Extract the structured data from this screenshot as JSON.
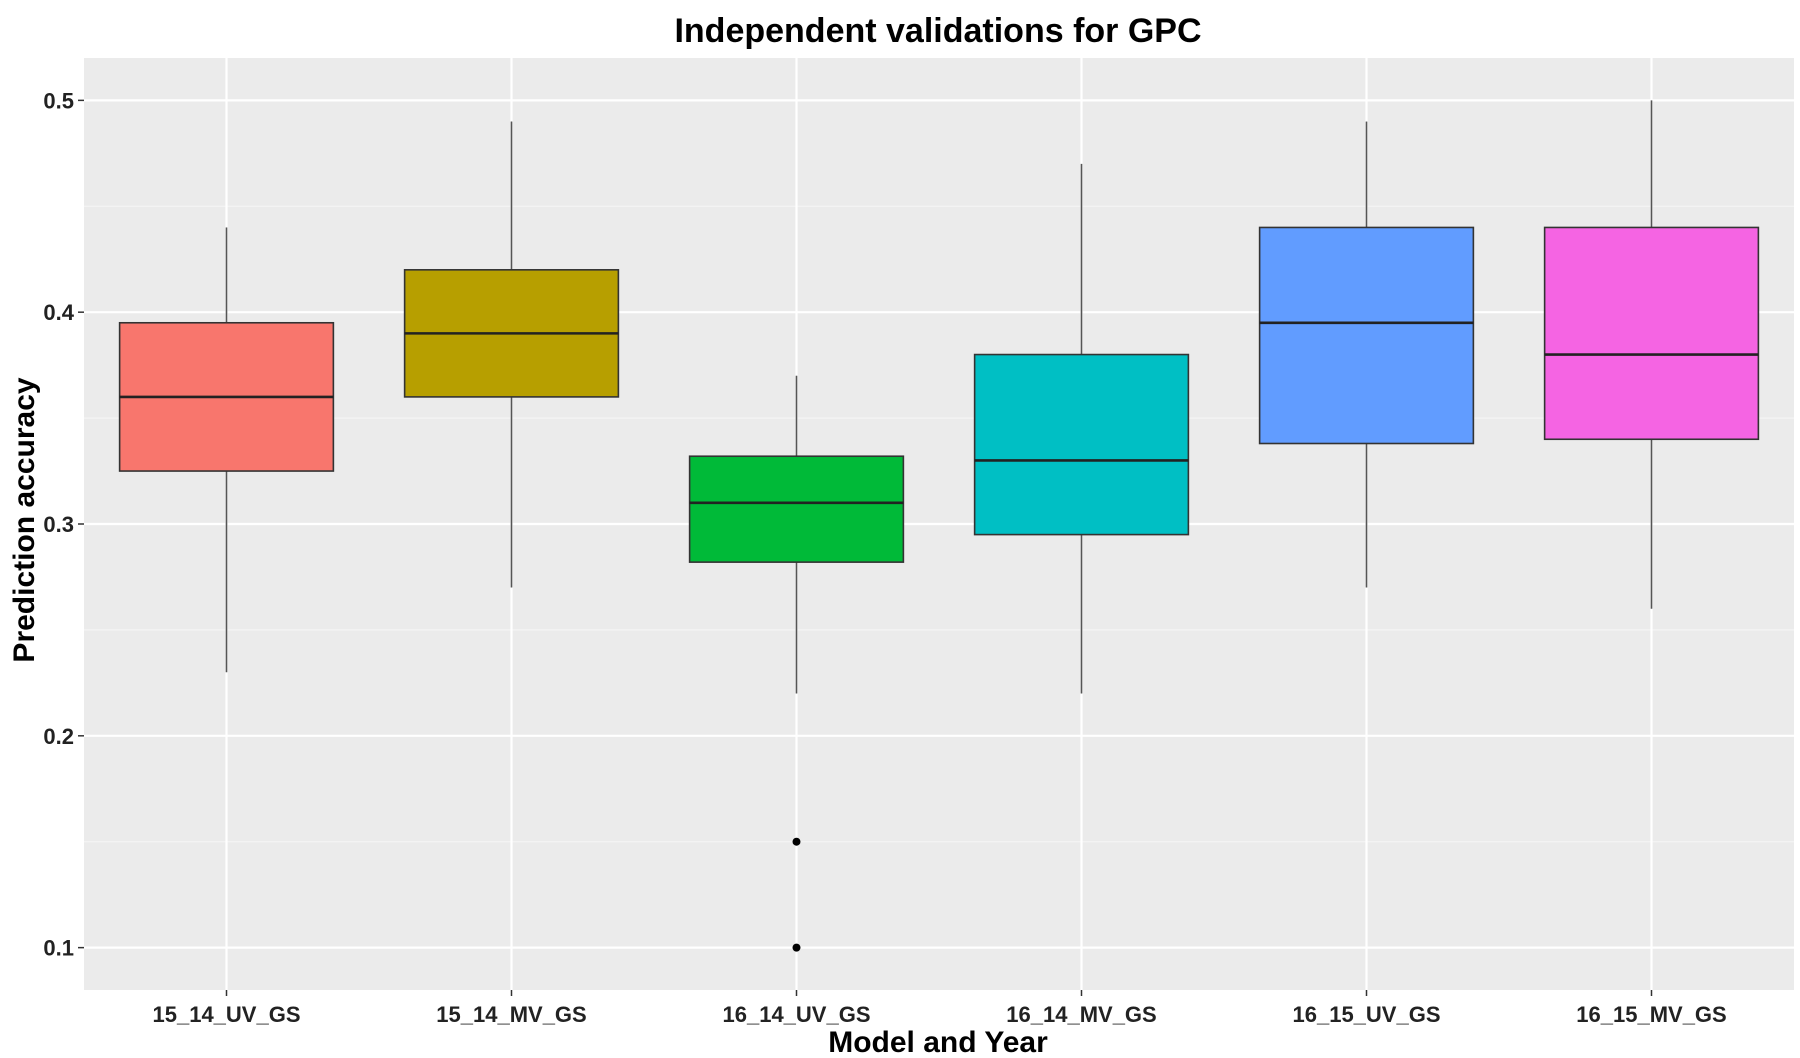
{
  "chart_data": {
    "type": "boxplot",
    "title": "Independent validations for GPC",
    "xlabel": "Model and Year",
    "ylabel": "Prediction accuracy",
    "ylim": [
      0.08,
      0.52
    ],
    "y_ticks": [
      0.1,
      0.2,
      0.3,
      0.4,
      0.5
    ],
    "y_tick_labels": [
      "0.1",
      "0.2",
      "0.3",
      "0.4",
      "0.5"
    ],
    "grid": true,
    "legend": "none",
    "colors": {
      "panel_background": "#EBEBEB",
      "grid_major": "#FFFFFF",
      "grid_minor": "#F4F4F4",
      "box_outline": "#333333",
      "whisker": "#555555",
      "outlier": "#000000"
    },
    "categories": [
      "15_14_UV_GS",
      "15_14_MV_GS",
      "16_14_UV_GS",
      "16_14_MV_GS",
      "16_15_UV_GS",
      "16_15_MV_GS"
    ],
    "boxes": [
      {
        "category": "15_14_UV_GS",
        "color": "#F8766D",
        "whisker_low": 0.23,
        "q1": 0.325,
        "median": 0.36,
        "q3": 0.395,
        "whisker_high": 0.44,
        "outliers": []
      },
      {
        "category": "15_14_MV_GS",
        "color": "#B79F00",
        "whisker_low": 0.27,
        "q1": 0.36,
        "median": 0.39,
        "q3": 0.42,
        "whisker_high": 0.49,
        "outliers": []
      },
      {
        "category": "16_14_UV_GS",
        "color": "#00BA38",
        "whisker_low": 0.22,
        "q1": 0.282,
        "median": 0.31,
        "q3": 0.332,
        "whisker_high": 0.37,
        "outliers": [
          0.15,
          0.1
        ]
      },
      {
        "category": "16_14_MV_GS",
        "color": "#00BFC4",
        "whisker_low": 0.22,
        "q1": 0.295,
        "median": 0.33,
        "q3": 0.38,
        "whisker_high": 0.47,
        "outliers": []
      },
      {
        "category": "16_15_UV_GS",
        "color": "#619CFF",
        "whisker_low": 0.27,
        "q1": 0.338,
        "median": 0.395,
        "q3": 0.44,
        "whisker_high": 0.49,
        "outliers": []
      },
      {
        "category": "16_15_MV_GS",
        "color": "#F564E3",
        "whisker_low": 0.26,
        "q1": 0.34,
        "median": 0.38,
        "q3": 0.44,
        "whisker_high": 0.5,
        "outliers": []
      }
    ]
  }
}
